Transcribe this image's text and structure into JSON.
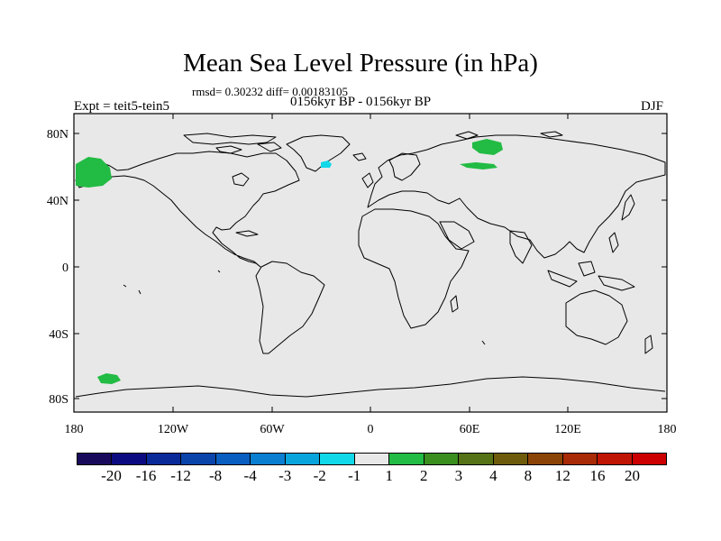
{
  "title": "Mean Sea Level Pressure (in hPa)",
  "stats": "rmsd= 0.30232 diff= 0.00183105",
  "experiment": "Expt = teit5-tein5",
  "period": "0156kyr BP - 0156kyr BP",
  "season": "DJF",
  "lat_labels": [
    "80N",
    "40N",
    "0",
    "40S",
    "80S"
  ],
  "lon_labels": [
    "180",
    "120W",
    "60W",
    "0",
    "60E",
    "120E",
    "180"
  ],
  "colorbar": {
    "labels": [
      "-20",
      "-16",
      "-12",
      "-8",
      "-4",
      "-3",
      "-2",
      "-1",
      "1",
      "2",
      "3",
      "4",
      "8",
      "12",
      "16",
      "20"
    ],
    "colors": [
      "#1a0a5c",
      "#0c0c80",
      "#0a2a9a",
      "#0a44aa",
      "#0a5ec0",
      "#0a7ed0",
      "#0aa4dc",
      "#10d8e8",
      "#e8e8e8",
      "#22bb44",
      "#3a8e1e",
      "#567216",
      "#6e5c0c",
      "#8c4406",
      "#a82a06",
      "#c01404",
      "#cc0000"
    ]
  },
  "colors": {
    "background": "#e8e8e8",
    "positive_anomaly": "#22bb44",
    "negative_anomaly": "#10d8e8"
  }
}
